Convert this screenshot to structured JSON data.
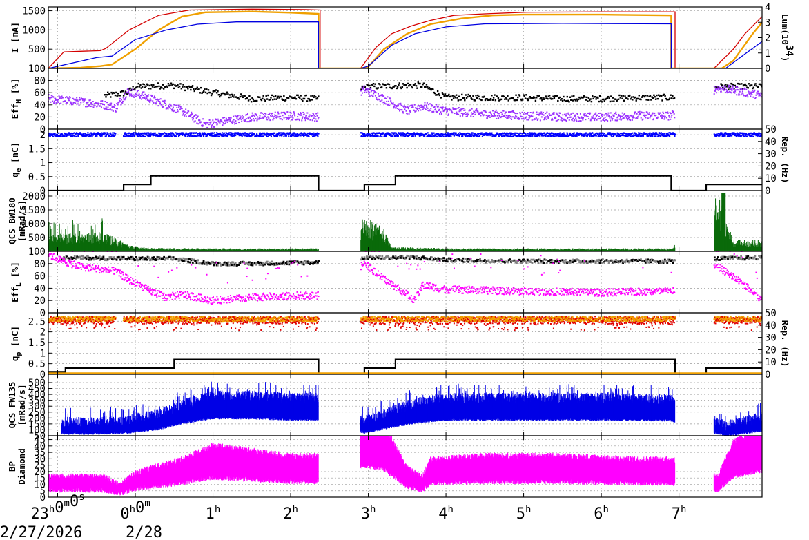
{
  "chart_data": {
    "x_axis": {
      "ticks": [
        {
          "label": "23",
          "sup": "h",
          "label2": "0",
          "sup2": "m",
          "label3": "0",
          "sup3": "s",
          "t": 0.0
        },
        {
          "label": "0",
          "sup": "h",
          "label2": "0",
          "sup2": "m",
          "t": 1.0
        },
        {
          "label": "1",
          "sup": "h",
          "t": 2.0
        },
        {
          "label": "2",
          "sup": "h",
          "t": 3.0
        },
        {
          "label": "3",
          "sup": "h",
          "t": 4.0
        },
        {
          "label": "4",
          "sup": "h",
          "t": 5.0
        },
        {
          "label": "5",
          "sup": "h",
          "t": 6.0
        },
        {
          "label": "6",
          "sup": "h",
          "t": 7.0
        },
        {
          "label": "7",
          "sup": "h",
          "t": 8.0
        }
      ],
      "date_left": "2/27/2026",
      "date_right": "2/28",
      "range": [
        -0.12,
        9.07
      ]
    },
    "panels": [
      {
        "id": "current",
        "type": "line",
        "ylabel": "I [mA]",
        "ylim": [
          0,
          1600
        ],
        "yticks": [
          0,
          500,
          1000,
          1500
        ],
        "y2label": "Lum(10",
        "y2sup": "34",
        "y2label_end": ")",
        "y2lim": [
          0,
          4
        ],
        "y2ticks": [
          0,
          1,
          2,
          3,
          4
        ],
        "series": [
          {
            "name": "",
            "color": "#d40000",
            "points": [
              [
                -0.12,
                0
              ],
              [
                0.08,
                430
              ],
              [
                0.55,
                460
              ],
              [
                0.62,
                520
              ],
              [
                0.92,
                1000
              ],
              [
                1.3,
                1380
              ],
              [
                1.7,
                1520
              ],
              [
                2.5,
                1540
              ],
              [
                3.2,
                1530
              ],
              [
                3.38,
                1520
              ],
              [
                3.38,
                0
              ],
              [
                3.9,
                0
              ],
              [
                4.1,
                550
              ],
              [
                4.3,
                900
              ],
              [
                4.55,
                1100
              ],
              [
                4.8,
                1250
              ],
              [
                5.1,
                1380
              ],
              [
                5.5,
                1420
              ],
              [
                6.0,
                1460
              ],
              [
                7.0,
                1470
              ],
              [
                7.95,
                1470
              ],
              [
                7.95,
                0
              ],
              [
                8.45,
                0
              ],
              [
                8.7,
                500
              ],
              [
                8.85,
                900
              ],
              [
                9.07,
                1350
              ]
            ]
          },
          {
            "name": "",
            "color": "#f0a000",
            "points": [
              [
                -0.12,
                0
              ],
              [
                0.3,
                20
              ],
              [
                0.55,
                60
              ],
              [
                0.7,
                100
              ],
              [
                1.0,
                500
              ],
              [
                1.3,
                1000
              ],
              [
                1.6,
                1350
              ],
              [
                1.9,
                1460
              ],
              [
                2.5,
                1480
              ],
              [
                3.0,
                1450
              ],
              [
                3.36,
                1420
              ],
              [
                3.36,
                0
              ],
              [
                3.9,
                0
              ],
              [
                4.0,
                40
              ],
              [
                4.2,
                500
              ],
              [
                4.5,
                900
              ],
              [
                4.8,
                1150
              ],
              [
                5.2,
                1300
              ],
              [
                5.6,
                1380
              ],
              [
                6.0,
                1400
              ],
              [
                7.0,
                1400
              ],
              [
                7.9,
                1380
              ],
              [
                7.9,
                0
              ],
              [
                8.55,
                0
              ],
              [
                8.7,
                200
              ],
              [
                8.95,
                900
              ],
              [
                9.07,
                1200
              ]
            ]
          },
          {
            "name": "",
            "color": "#0000e0",
            "points": [
              [
                -0.12,
                0
              ],
              [
                0.5,
                280
              ],
              [
                0.7,
                320
              ],
              [
                1.0,
                750
              ],
              [
                1.4,
                1000
              ],
              [
                1.8,
                1150
              ],
              [
                2.3,
                1210
              ],
              [
                3.36,
                1210
              ],
              [
                3.36,
                0
              ],
              [
                3.9,
                0
              ],
              [
                4.0,
                60
              ],
              [
                4.3,
                600
              ],
              [
                4.6,
                900
              ],
              [
                5.0,
                1080
              ],
              [
                5.5,
                1160
              ],
              [
                6.5,
                1170
              ],
              [
                7.9,
                1160
              ],
              [
                7.9,
                0
              ],
              [
                8.6,
                0
              ],
              [
                8.8,
                300
              ],
              [
                9.07,
                700
              ]
            ]
          }
        ]
      },
      {
        "id": "eff_h",
        "type": "scatter",
        "ylabel": "Eff",
        "ylabel_sub": "H",
        "ylabel_end": " [%]",
        "ylim": [
          0,
          100
        ],
        "yticks": [
          0,
          20,
          40,
          60,
          80,
          100
        ],
        "series": [
          {
            "name": "",
            "color": "#000000",
            "profile": [
              [
                0.62,
                55
              ],
              [
                0.9,
                60
              ],
              [
                1.0,
                70
              ],
              [
                1.5,
                72
              ],
              [
                2.0,
                60
              ],
              [
                2.5,
                50
              ],
              [
                3.0,
                52
              ],
              [
                3.36,
                50
              ],
              [
                4.0,
                70
              ],
              [
                4.5,
                72
              ],
              [
                4.7,
                72
              ],
              [
                5.0,
                52
              ],
              [
                5.5,
                52
              ],
              [
                6.0,
                52
              ],
              [
                6.5,
                50
              ],
              [
                7.0,
                50
              ],
              [
                7.5,
                52
              ],
              [
                7.9,
                52
              ],
              [
                8.5,
                70
              ],
              [
                9.07,
                70
              ]
            ],
            "spread": 5
          }
        ]
      },
      {
        "id": "qe",
        "type": "scatter",
        "ylabel": "q",
        "ylabel_sub": "e",
        "ylabel_end": " [nC]",
        "ylim": [
          0,
          2.2
        ],
        "yticks": [
          0,
          0.5,
          1,
          1.5,
          2
        ],
        "y2label": "Rep. (Hz)",
        "y2lim": [
          0,
          50
        ],
        "y2ticks": [
          0,
          10,
          20,
          30,
          40,
          50
        ],
        "rep_steps": [
          [
            -0.12,
            0
          ],
          [
            0.85,
            0
          ],
          [
            0.85,
            5
          ],
          [
            1.2,
            5
          ],
          [
            1.2,
            12
          ],
          [
            3.36,
            12
          ],
          [
            3.36,
            0
          ],
          [
            3.95,
            0
          ],
          [
            3.95,
            5
          ],
          [
            4.35,
            5
          ],
          [
            4.35,
            12
          ],
          [
            7.9,
            12
          ],
          [
            7.9,
            0
          ],
          [
            8.35,
            0
          ],
          [
            8.35,
            5
          ],
          [
            9.07,
            5
          ]
        ]
      },
      {
        "id": "qcs_bw180",
        "type": "bar",
        "ylabel": "QCS BW180",
        "ylabel2": "[mRad/s]",
        "ylim": [
          0,
          2200
        ],
        "yticks": [
          500,
          1000,
          1500,
          2000
        ],
        "color": "#0a6a0a"
      },
      {
        "id": "eff_l",
        "type": "scatter",
        "ylabel": "Eff",
        "ylabel_sub": "L",
        "ylabel_end": " [%]",
        "ylim": [
          0,
          100
        ],
        "yticks": [
          0,
          20,
          40,
          60,
          80,
          100
        ]
      },
      {
        "id": "qp",
        "type": "scatter",
        "ylabel": "q",
        "ylabel_sub": "p",
        "ylabel_end": " [nC]",
        "ylim": [
          0,
          2.9
        ],
        "yticks": [
          0,
          0.5,
          1,
          1.5,
          2,
          2.5
        ],
        "y2label": "Rep. (Hz)",
        "y2lim": [
          0,
          50
        ],
        "y2ticks": [
          0,
          10,
          20,
          30,
          40,
          50
        ]
      },
      {
        "id": "qcs_fw135",
        "type": "bar",
        "ylabel": "QCS FW135",
        "ylabel2": "[mRad/s]",
        "ylim": [
          50,
          570
        ],
        "yticks": [
          50,
          100,
          150,
          200,
          250,
          300,
          350,
          400,
          450,
          500
        ],
        "color": "#0000e6"
      },
      {
        "id": "bp",
        "type": "bar",
        "ylabel": "BP",
        "ylabel2": "Diamond",
        "ylim": [
          0,
          48
        ],
        "yticks": [
          0,
          5,
          10,
          15,
          20,
          25,
          30,
          35,
          40,
          45
        ],
        "color": "#ff00ff"
      }
    ]
  }
}
